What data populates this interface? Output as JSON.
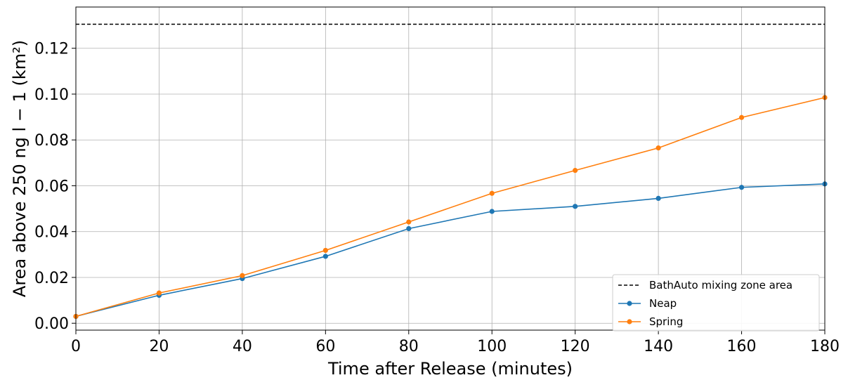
{
  "chart_data": {
    "type": "line",
    "xlabel": "Time after Release (minutes)",
    "ylabel": "Area above 250 ng l − 1 (km²)",
    "xlim": [
      0,
      180
    ],
    "ylim": [
      -0.003,
      0.138
    ],
    "xticks": [
      "0",
      "20",
      "40",
      "60",
      "80",
      "100",
      "120",
      "140",
      "160",
      "180"
    ],
    "yticks": [
      "0.00",
      "0.02",
      "0.04",
      "0.06",
      "0.08",
      "0.10",
      "0.12"
    ],
    "grid": true,
    "legend_position": "lower-right",
    "x": [
      0,
      20,
      40,
      60,
      80,
      100,
      120,
      140,
      160,
      180
    ],
    "series": [
      {
        "name": "Neap",
        "color": "#1f77b4",
        "marker": "circle",
        "values": [
          0.003,
          0.0122,
          0.0195,
          0.0292,
          0.0413,
          0.0488,
          0.051,
          0.0545,
          0.0593,
          0.0608
        ]
      },
      {
        "name": "Spring",
        "color": "#ff7f0e",
        "marker": "circle",
        "values": [
          0.003,
          0.0132,
          0.0208,
          0.0318,
          0.0442,
          0.0567,
          0.0667,
          0.0765,
          0.0898,
          0.0985
        ]
      }
    ],
    "reference_line": {
      "name": "BathAuto mixing zone area",
      "value": 0.1305,
      "style": "dashed",
      "color": "#000000"
    }
  }
}
